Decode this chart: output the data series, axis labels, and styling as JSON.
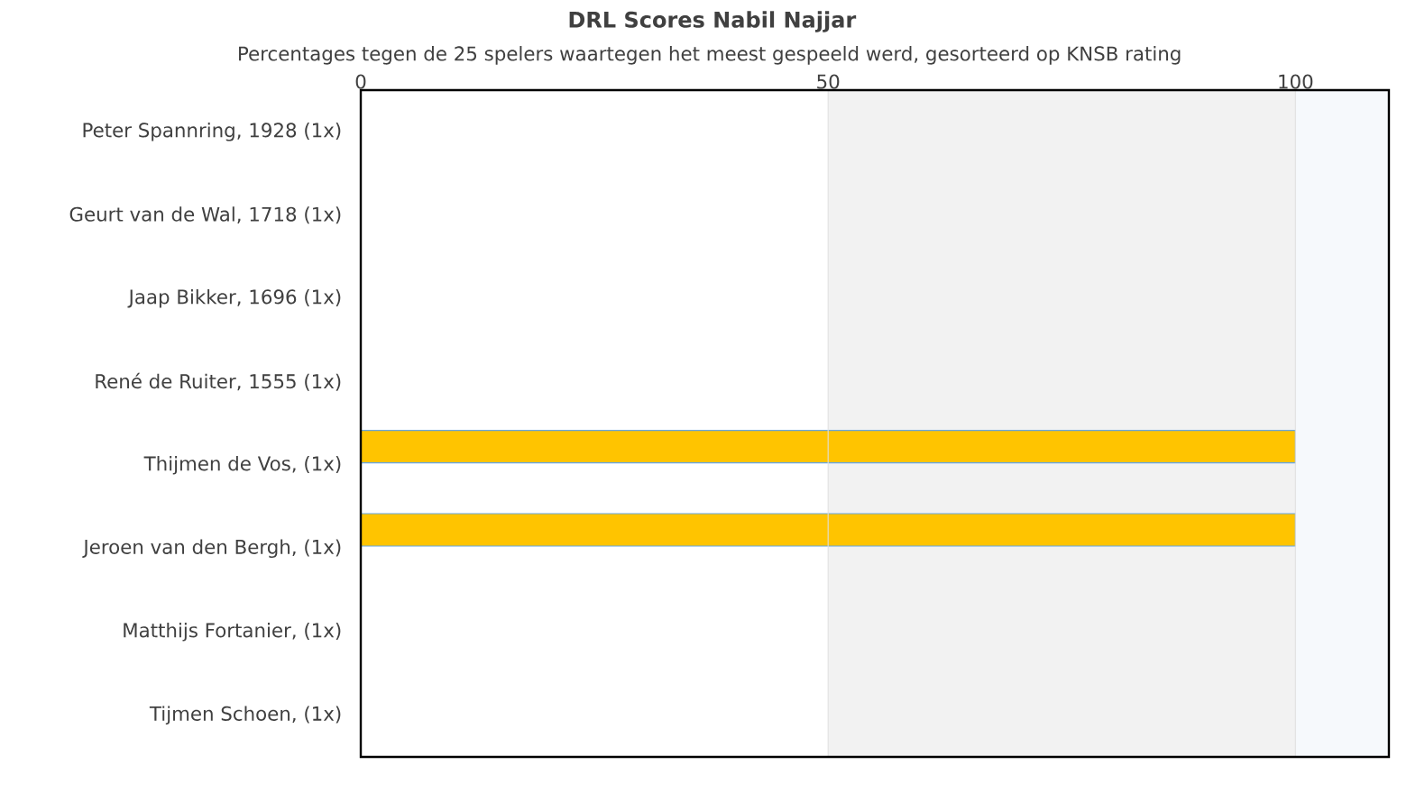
{
  "chart_data": {
    "type": "bar",
    "orientation": "horizontal",
    "title": "DRL Scores Nabil Najjar",
    "subtitle": "Percentages tegen de 25 spelers waartegen het meest gespeeld werd, gesorteerd op KNSB rating",
    "categories": [
      "Peter Spannring, 1928 (1x)",
      "Geurt van de Wal, 1718 (1x)",
      "Jaap Bikker, 1696 (1x)",
      "René de Ruiter, 1555 (1x)",
      "Thijmen de Vos, (1x)",
      "Jeroen van den Bergh, (1x)",
      "Matthijs Fortanier, (1x)",
      "Tijmen Schoen, (1x)"
    ],
    "values": [
      0,
      0,
      0,
      0,
      100,
      100,
      0,
      0
    ],
    "color": "#ffc400",
    "xlim": [
      0,
      110
    ],
    "xticks": [
      0,
      50,
      100
    ],
    "grid": "x",
    "bands": [
      {
        "axis": "x",
        "from": 50,
        "to": 100,
        "color": "#f2f2f2"
      },
      {
        "axis": "x",
        "from": 100,
        "to": 110,
        "color": "#f6f9fc"
      }
    ]
  }
}
